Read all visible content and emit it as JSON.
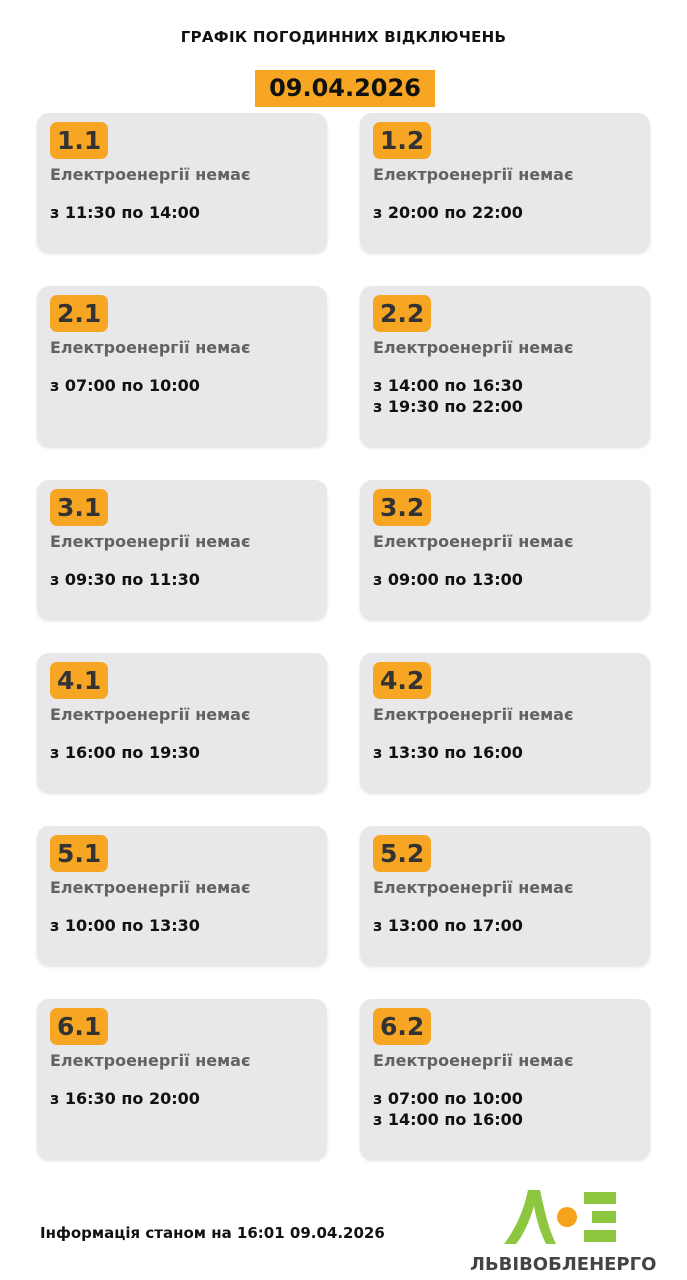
{
  "header": {
    "title": "ГРАФІК ПОГОДИННИХ ВІДКЛЮЧЕНЬ",
    "date": "09.04.2026"
  },
  "groups": [
    {
      "id": "1.1",
      "status": "Електроенергії немає",
      "times": [
        "з 11:30 по 14:00"
      ]
    },
    {
      "id": "1.2",
      "status": "Електроенергії немає",
      "times": [
        "з 20:00 по 22:00"
      ]
    },
    {
      "id": "2.1",
      "status": "Електроенергії немає",
      "times": [
        "з 07:00 по 10:00"
      ]
    },
    {
      "id": "2.2",
      "status": "Електроенергії немає",
      "times": [
        "з 14:00 по 16:30",
        "з 19:30 по 22:00"
      ]
    },
    {
      "id": "3.1",
      "status": "Електроенергії немає",
      "times": [
        "з 09:30 по 11:30"
      ]
    },
    {
      "id": "3.2",
      "status": "Електроенергії немає",
      "times": [
        "з 09:00 по 13:00"
      ]
    },
    {
      "id": "4.1",
      "status": "Електроенергії немає",
      "times": [
        "з 16:00 по 19:30"
      ]
    },
    {
      "id": "4.2",
      "status": "Електроенергії немає",
      "times": [
        "з 13:30 по 16:00"
      ]
    },
    {
      "id": "5.1",
      "status": "Електроенергії немає",
      "times": [
        "з 10:00 по 13:30"
      ]
    },
    {
      "id": "5.2",
      "status": "Електроенергії немає",
      "times": [
        "з 13:00 по 17:00"
      ]
    },
    {
      "id": "6.1",
      "status": "Електроенергії немає",
      "times": [
        "з 16:30 по 20:00"
      ]
    },
    {
      "id": "6.2",
      "status": "Електроенергії немає",
      "times": [
        "з 07:00 по 10:00",
        "з 14:00 по 16:00"
      ]
    }
  ],
  "footer": {
    "info": "Інформація станом на 16:01 09.04.2026",
    "brand": "ЛЬВІВОБЛЕНЕРГО"
  },
  "colors": {
    "accent": "#f6a623",
    "card": "#e8e8ea",
    "logo_green": "#8dc63f",
    "logo_orange": "#f7a21b"
  }
}
